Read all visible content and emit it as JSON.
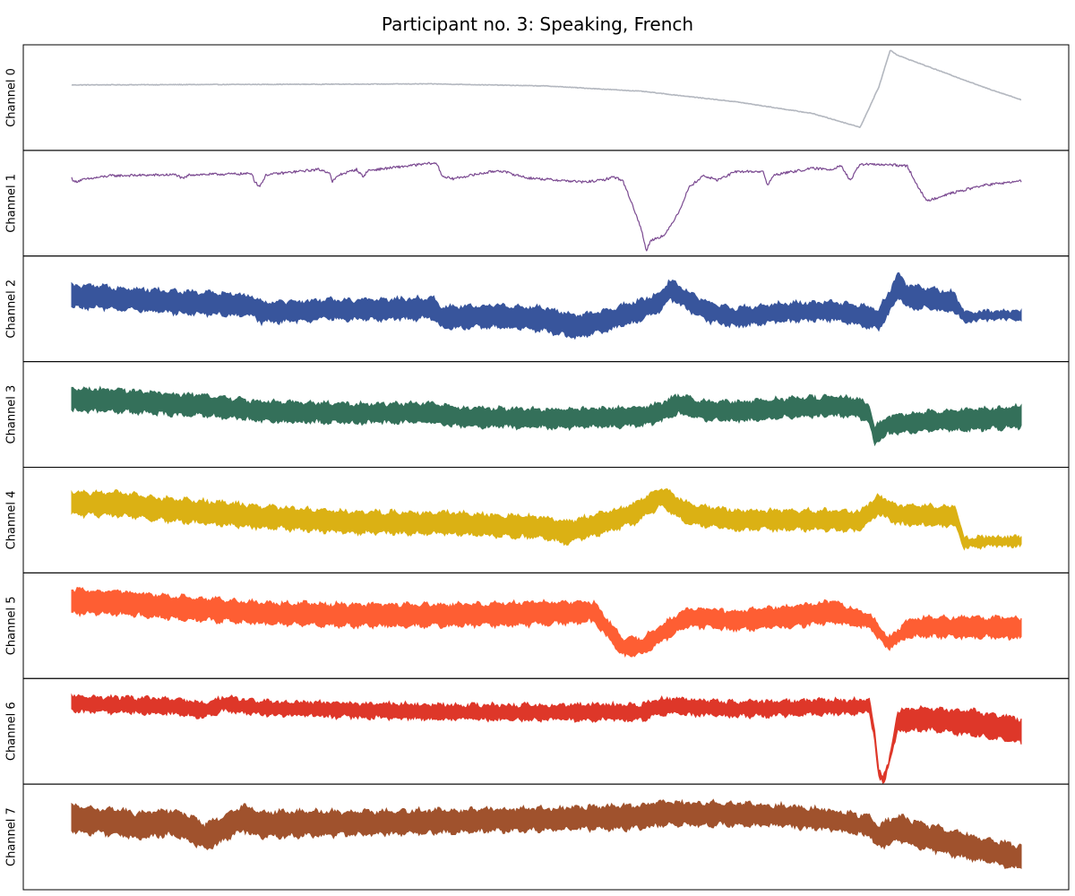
{
  "chart_data": {
    "type": "line",
    "title": "Participant no. 3: Speaking, French",
    "grid": false,
    "legend": "none",
    "x_ticks": "hidden",
    "y_ticks": "hidden",
    "series": [
      {
        "ylabel": "Channel 0",
        "color": "#b3b7bf",
        "band": false,
        "noise": 0.003,
        "ylim": [
          0,
          1
        ],
        "center": [
          [
            0,
            0.62
          ],
          [
            0.2,
            0.625
          ],
          [
            0.38,
            0.63
          ],
          [
            0.5,
            0.61
          ],
          [
            0.6,
            0.56
          ],
          [
            0.7,
            0.46
          ],
          [
            0.78,
            0.35
          ],
          [
            0.83,
            0.22
          ],
          [
            0.832,
            0.25
          ],
          [
            0.85,
            0.6
          ],
          [
            0.862,
            0.95
          ],
          [
            0.87,
            0.9
          ],
          [
            0.9,
            0.8
          ],
          [
            0.93,
            0.7
          ],
          [
            0.96,
            0.6
          ],
          [
            1.0,
            0.48
          ]
        ]
      },
      {
        "ylabel": "Channel 1",
        "color": "#7b4a91",
        "band": false,
        "noise": 0.012,
        "ylim": [
          0,
          1
        ],
        "center": [
          [
            0,
            0.74
          ],
          [
            0.003,
            0.7
          ],
          [
            0.01,
            0.72
          ],
          [
            0.04,
            0.76
          ],
          [
            0.11,
            0.77
          ],
          [
            0.117,
            0.73
          ],
          [
            0.124,
            0.77
          ],
          [
            0.19,
            0.78
          ],
          [
            0.193,
            0.7
          ],
          [
            0.198,
            0.66
          ],
          [
            0.205,
            0.77
          ],
          [
            0.26,
            0.82
          ],
          [
            0.272,
            0.79
          ],
          [
            0.274,
            0.7
          ],
          [
            0.282,
            0.77
          ],
          [
            0.3,
            0.82
          ],
          [
            0.307,
            0.75
          ],
          [
            0.312,
            0.81
          ],
          [
            0.38,
            0.88
          ],
          [
            0.385,
            0.87
          ],
          [
            0.39,
            0.76
          ],
          [
            0.4,
            0.73
          ],
          [
            0.43,
            0.78
          ],
          [
            0.45,
            0.81
          ],
          [
            0.48,
            0.74
          ],
          [
            0.51,
            0.72
          ],
          [
            0.54,
            0.7
          ],
          [
            0.56,
            0.72
          ],
          [
            0.57,
            0.75
          ],
          [
            0.58,
            0.72
          ],
          [
            0.59,
            0.5
          ],
          [
            0.6,
            0.25
          ],
          [
            0.605,
            0.05
          ],
          [
            0.61,
            0.15
          ],
          [
            0.625,
            0.2
          ],
          [
            0.64,
            0.43
          ],
          [
            0.65,
            0.65
          ],
          [
            0.665,
            0.76
          ],
          [
            0.68,
            0.72
          ],
          [
            0.7,
            0.8
          ],
          [
            0.72,
            0.8
          ],
          [
            0.728,
            0.8
          ],
          [
            0.733,
            0.67
          ],
          [
            0.74,
            0.77
          ],
          [
            0.78,
            0.83
          ],
          [
            0.8,
            0.82
          ],
          [
            0.81,
            0.86
          ],
          [
            0.82,
            0.71
          ],
          [
            0.83,
            0.87
          ],
          [
            0.87,
            0.86
          ],
          [
            0.88,
            0.85
          ],
          [
            0.89,
            0.68
          ],
          [
            0.9,
            0.52
          ],
          [
            0.92,
            0.58
          ],
          [
            0.96,
            0.67
          ],
          [
            1.0,
            0.71
          ]
        ]
      },
      {
        "ylabel": "Channel 2",
        "color": "#38559c",
        "band": true,
        "noise": 0.02,
        "ylim": [
          0,
          1
        ],
        "center": [
          [
            0,
            0.62
          ],
          [
            0.05,
            0.6
          ],
          [
            0.1,
            0.57
          ],
          [
            0.15,
            0.55
          ],
          [
            0.19,
            0.53
          ],
          [
            0.2,
            0.47
          ],
          [
            0.25,
            0.48
          ],
          [
            0.27,
            0.5
          ],
          [
            0.3,
            0.49
          ],
          [
            0.35,
            0.5
          ],
          [
            0.38,
            0.51
          ],
          [
            0.39,
            0.42
          ],
          [
            0.45,
            0.43
          ],
          [
            0.5,
            0.4
          ],
          [
            0.53,
            0.33
          ],
          [
            0.56,
            0.38
          ],
          [
            0.6,
            0.49
          ],
          [
            0.62,
            0.57
          ],
          [
            0.63,
            0.69
          ],
          [
            0.645,
            0.6
          ],
          [
            0.67,
            0.47
          ],
          [
            0.7,
            0.42
          ],
          [
            0.72,
            0.44
          ],
          [
            0.75,
            0.47
          ],
          [
            0.8,
            0.48
          ],
          [
            0.83,
            0.44
          ],
          [
            0.85,
            0.4
          ],
          [
            0.86,
            0.55
          ],
          [
            0.87,
            0.72
          ],
          [
            0.88,
            0.62
          ],
          [
            0.9,
            0.6
          ],
          [
            0.93,
            0.56
          ],
          [
            0.94,
            0.42
          ],
          [
            0.97,
            0.44
          ],
          [
            1.0,
            0.44
          ]
        ],
        "amp": [
          [
            0,
            0.23
          ],
          [
            0.15,
            0.22
          ],
          [
            0.3,
            0.2
          ],
          [
            0.5,
            0.24
          ],
          [
            0.6,
            0.2
          ],
          [
            0.8,
            0.18
          ],
          [
            0.87,
            0.23
          ],
          [
            0.93,
            0.2
          ],
          [
            0.94,
            0.09
          ],
          [
            1.0,
            0.08
          ]
        ]
      },
      {
        "ylabel": "Channel 3",
        "color": "#34705a",
        "band": true,
        "noise": 0.02,
        "ylim": [
          0,
          1
        ],
        "center": [
          [
            0,
            0.64
          ],
          [
            0.05,
            0.63
          ],
          [
            0.1,
            0.6
          ],
          [
            0.15,
            0.58
          ],
          [
            0.2,
            0.53
          ],
          [
            0.3,
            0.51
          ],
          [
            0.38,
            0.52
          ],
          [
            0.4,
            0.48
          ],
          [
            0.5,
            0.46
          ],
          [
            0.6,
            0.48
          ],
          [
            0.62,
            0.52
          ],
          [
            0.64,
            0.6
          ],
          [
            0.66,
            0.54
          ],
          [
            0.7,
            0.53
          ],
          [
            0.75,
            0.56
          ],
          [
            0.8,
            0.58
          ],
          [
            0.83,
            0.56
          ],
          [
            0.84,
            0.5
          ],
          [
            0.845,
            0.3
          ],
          [
            0.86,
            0.4
          ],
          [
            0.9,
            0.44
          ],
          [
            0.95,
            0.45
          ],
          [
            1.0,
            0.48
          ]
        ],
        "amp": [
          [
            0,
            0.23
          ],
          [
            0.2,
            0.2
          ],
          [
            0.5,
            0.19
          ],
          [
            0.6,
            0.19
          ],
          [
            0.8,
            0.2
          ],
          [
            0.85,
            0.18
          ],
          [
            1.0,
            0.22
          ]
        ]
      },
      {
        "ylabel": "Channel 4",
        "color": "#dbb114",
        "band": true,
        "noise": 0.02,
        "ylim": [
          0,
          1
        ],
        "center": [
          [
            0,
            0.66
          ],
          [
            0.05,
            0.65
          ],
          [
            0.1,
            0.6
          ],
          [
            0.15,
            0.57
          ],
          [
            0.2,
            0.53
          ],
          [
            0.3,
            0.48
          ],
          [
            0.4,
            0.47
          ],
          [
            0.5,
            0.43
          ],
          [
            0.52,
            0.38
          ],
          [
            0.55,
            0.45
          ],
          [
            0.59,
            0.55
          ],
          [
            0.62,
            0.72
          ],
          [
            0.65,
            0.56
          ],
          [
            0.7,
            0.5
          ],
          [
            0.75,
            0.5
          ],
          [
            0.8,
            0.5
          ],
          [
            0.83,
            0.49
          ],
          [
            0.85,
            0.65
          ],
          [
            0.87,
            0.55
          ],
          [
            0.93,
            0.54
          ],
          [
            0.94,
            0.29
          ],
          [
            1.0,
            0.3
          ]
        ],
        "amp": [
          [
            0,
            0.24
          ],
          [
            0.2,
            0.22
          ],
          [
            0.5,
            0.22
          ],
          [
            0.6,
            0.2
          ],
          [
            0.85,
            0.2
          ],
          [
            0.93,
            0.2
          ],
          [
            0.94,
            0.1
          ],
          [
            1.0,
            0.09
          ]
        ]
      },
      {
        "ylabel": "Channel 5",
        "color": "#fe5e33",
        "band": true,
        "noise": 0.02,
        "ylim": [
          0,
          1
        ],
        "center": [
          [
            0,
            0.73
          ],
          [
            0.05,
            0.72
          ],
          [
            0.1,
            0.68
          ],
          [
            0.2,
            0.62
          ],
          [
            0.3,
            0.6
          ],
          [
            0.4,
            0.6
          ],
          [
            0.5,
            0.62
          ],
          [
            0.55,
            0.63
          ],
          [
            0.56,
            0.52
          ],
          [
            0.58,
            0.3
          ],
          [
            0.6,
            0.3
          ],
          [
            0.63,
            0.48
          ],
          [
            0.65,
            0.58
          ],
          [
            0.7,
            0.55
          ],
          [
            0.75,
            0.58
          ],
          [
            0.8,
            0.63
          ],
          [
            0.84,
            0.55
          ],
          [
            0.86,
            0.33
          ],
          [
            0.88,
            0.47
          ],
          [
            0.9,
            0.49
          ],
          [
            1.0,
            0.48
          ]
        ],
        "amp": [
          [
            0,
            0.24
          ],
          [
            0.2,
            0.22
          ],
          [
            0.5,
            0.23
          ],
          [
            0.55,
            0.2
          ],
          [
            0.6,
            0.17
          ],
          [
            0.8,
            0.22
          ],
          [
            0.86,
            0.12
          ],
          [
            0.9,
            0.2
          ],
          [
            1.0,
            0.21
          ]
        ]
      },
      {
        "ylabel": "Channel 6",
        "color": "#de3729",
        "band": true,
        "noise": 0.02,
        "ylim": [
          0,
          1
        ],
        "center": [
          [
            0,
            0.76
          ],
          [
            0.1,
            0.74
          ],
          [
            0.14,
            0.7
          ],
          [
            0.16,
            0.76
          ],
          [
            0.2,
            0.72
          ],
          [
            0.4,
            0.68
          ],
          [
            0.6,
            0.68
          ],
          [
            0.62,
            0.74
          ],
          [
            0.7,
            0.71
          ],
          [
            0.8,
            0.73
          ],
          [
            0.84,
            0.74
          ],
          [
            0.845,
            0.5
          ],
          [
            0.85,
            0.1
          ],
          [
            0.855,
            0.04
          ],
          [
            0.86,
            0.18
          ],
          [
            0.87,
            0.6
          ],
          [
            0.9,
            0.62
          ],
          [
            0.95,
            0.58
          ],
          [
            1.0,
            0.5
          ]
        ],
        "amp": [
          [
            0,
            0.16
          ],
          [
            0.2,
            0.14
          ],
          [
            0.6,
            0.16
          ],
          [
            0.84,
            0.14
          ],
          [
            0.86,
            0.05
          ],
          [
            0.87,
            0.22
          ],
          [
            1.0,
            0.26
          ]
        ]
      },
      {
        "ylabel": "Channel 7",
        "color": "#a0522d",
        "band": true,
        "noise": 0.022,
        "ylim": [
          0,
          1
        ],
        "center": [
          [
            0,
            0.67
          ],
          [
            0.05,
            0.64
          ],
          [
            0.07,
            0.6
          ],
          [
            0.1,
            0.64
          ],
          [
            0.12,
            0.6
          ],
          [
            0.14,
            0.5
          ],
          [
            0.16,
            0.58
          ],
          [
            0.18,
            0.68
          ],
          [
            0.2,
            0.62
          ],
          [
            0.3,
            0.63
          ],
          [
            0.4,
            0.65
          ],
          [
            0.5,
            0.67
          ],
          [
            0.6,
            0.69
          ],
          [
            0.62,
            0.72
          ],
          [
            0.7,
            0.72
          ],
          [
            0.75,
            0.7
          ],
          [
            0.8,
            0.66
          ],
          [
            0.84,
            0.6
          ],
          [
            0.85,
            0.5
          ],
          [
            0.87,
            0.58
          ],
          [
            0.9,
            0.5
          ],
          [
            0.95,
            0.4
          ],
          [
            1.0,
            0.3
          ]
        ],
        "amp": [
          [
            0,
            0.26
          ],
          [
            0.2,
            0.26
          ],
          [
            0.5,
            0.22
          ],
          [
            0.6,
            0.24
          ],
          [
            0.84,
            0.2
          ],
          [
            0.86,
            0.26
          ],
          [
            1.0,
            0.24
          ]
        ]
      }
    ]
  }
}
